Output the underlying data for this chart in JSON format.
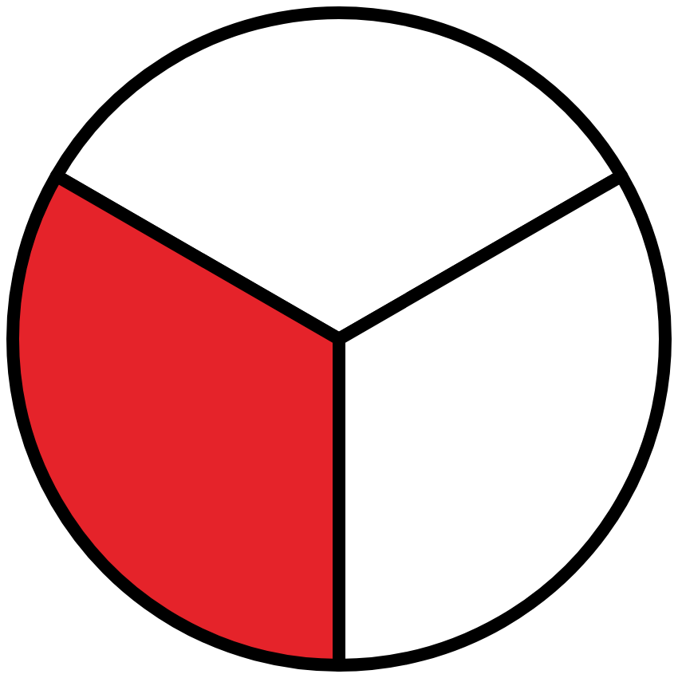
{
  "chart_data": {
    "type": "pie",
    "categories": [
      null,
      null,
      null
    ],
    "values": [
      33.33,
      33.33,
      33.33
    ],
    "colors": [
      "#ffffff",
      "#ffffff",
      "#e5232a"
    ]
  }
}
